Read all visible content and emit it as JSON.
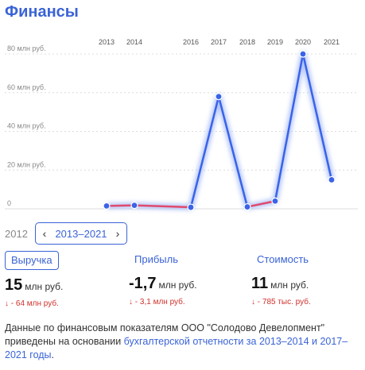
{
  "title": "Финансы",
  "chart_data": {
    "type": "line",
    "title": "",
    "x": [
      "2013",
      "2014",
      "2016",
      "2017",
      "2018",
      "2019",
      "2020",
      "2021"
    ],
    "series": [
      {
        "values": [
          1.5,
          1.8,
          0.8,
          58,
          1,
          4,
          80,
          15
        ]
      }
    ],
    "yticks": [
      "80 млн руб.",
      "60 млн руб.",
      "40 млн руб.",
      "20 млн руб.",
      "0"
    ],
    "ytick_values": [
      80,
      60,
      40,
      20,
      0
    ],
    "ylim": [
      0,
      80
    ],
    "grid": true,
    "colors": {
      "line": "#3a63e8",
      "negative_segment": "#e04a6e",
      "glow": "#a9bdf7"
    }
  },
  "nav": {
    "prev_year": "2012",
    "range_label": "2013–2021",
    "left_icon": "chevron-left-icon",
    "right_icon": "chevron-right-icon"
  },
  "metrics": [
    {
      "tab": "Выручка",
      "value": "15",
      "unit": "млн руб.",
      "delta": "↓ - 64 млн руб.",
      "active": true
    },
    {
      "tab": "Прибыль",
      "value": "-1,7",
      "unit": "млн руб.",
      "delta": "↓ - 3,1 млн руб.",
      "active": false
    },
    {
      "tab": "Стоимость",
      "value": "11",
      "unit": "млн руб.",
      "delta": "↓ - 785 тыс. руб.",
      "active": false
    }
  ],
  "footer": {
    "text_before": "Данные по финансовым показателям ООО \"Солодово Девелопмент\" приведены на основании ",
    "link": "бухгалтерской отчетности за 2013–2014 и 2017–2021 годы",
    "text_after": "."
  }
}
